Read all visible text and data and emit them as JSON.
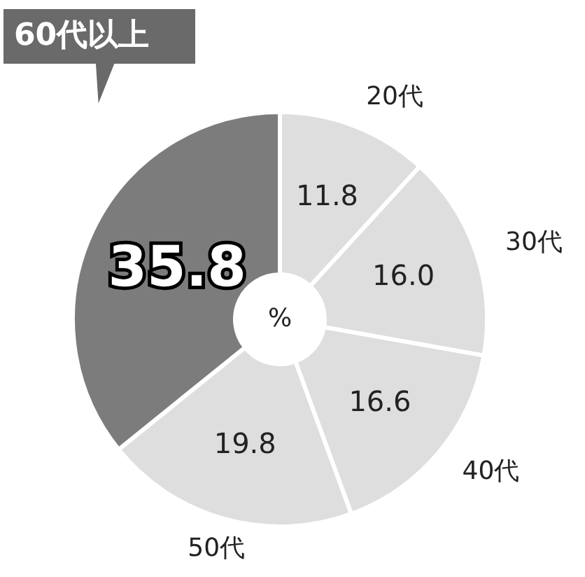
{
  "chart_data": {
    "type": "donut",
    "title": "%",
    "categories": [
      "20代",
      "30代",
      "40代",
      "50代",
      "60代以上"
    ],
    "values": [
      11.8,
      16.0,
      16.6,
      19.8,
      35.8
    ],
    "value_labels": [
      "11.8",
      "16.0",
      "16.6",
      "19.8",
      "35.8"
    ],
    "colors": [
      "#dedede",
      "#dedede",
      "#dedede",
      "#dedede",
      "#7c7c7c"
    ]
  }
}
